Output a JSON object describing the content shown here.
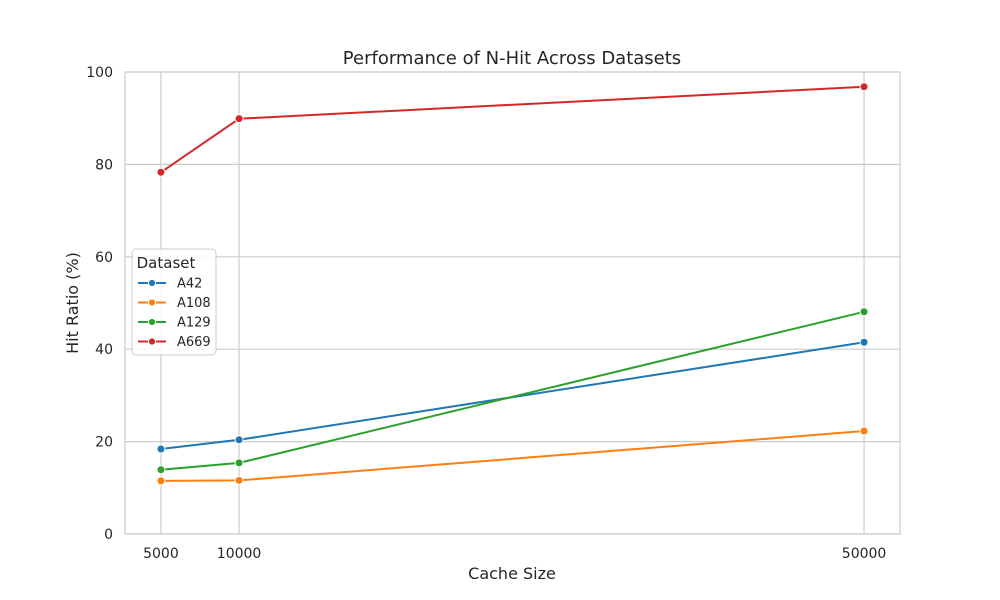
{
  "chart_data": {
    "type": "line",
    "title": "Performance of N-Hit Across Datasets",
    "xlabel": "Cache Size",
    "ylabel": "Hit Ratio (%)",
    "x": [
      5000,
      10000,
      50000
    ],
    "x_tick_labels": [
      "5000",
      "10000",
      "50000"
    ],
    "xlim": [
      2700,
      52300
    ],
    "ylim": [
      0,
      100
    ],
    "y_ticks": [
      0,
      20,
      40,
      60,
      80,
      100
    ],
    "y_tick_labels": [
      "0",
      "20",
      "40",
      "60",
      "80",
      "100"
    ],
    "grid": true,
    "legend": {
      "title": "Dataset",
      "placement": "center-left"
    },
    "series": [
      {
        "name": "A42",
        "color": "#1f77b4",
        "values": [
          18.4,
          20.4,
          41.5
        ]
      },
      {
        "name": "A108",
        "color": "#ff7f0e",
        "values": [
          11.5,
          11.6,
          22.3
        ]
      },
      {
        "name": "A129",
        "color": "#2ca02c",
        "values": [
          13.9,
          15.4,
          48.1
        ]
      },
      {
        "name": "A669",
        "color": "#d62728",
        "values": [
          78.3,
          89.9,
          96.8
        ]
      }
    ]
  }
}
